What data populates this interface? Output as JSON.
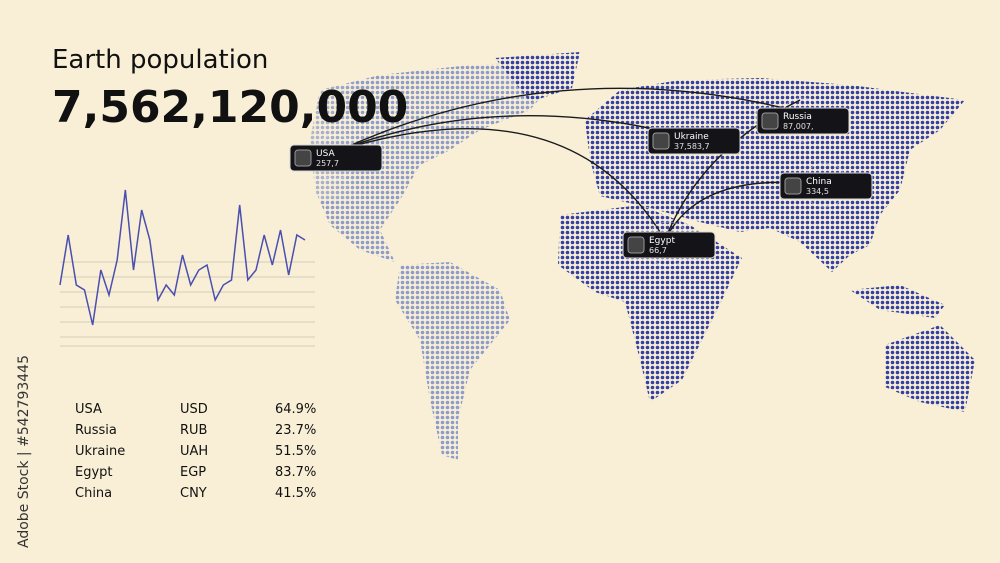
{
  "header": {
    "title": "Earth population",
    "population": "7,562,120,000"
  },
  "markers": [
    {
      "country": "USA",
      "value": "257,7"
    },
    {
      "country": "Ukraine",
      "value": "37,583,7"
    },
    {
      "country": "Russia",
      "value": "87,007,"
    },
    {
      "country": "China",
      "value": "334,5"
    },
    {
      "country": "Egypt",
      "value": "66,7"
    }
  ],
  "sparkline": {
    "type": "line",
    "color": "#4a4fb0",
    "values": [
      60,
      110,
      60,
      55,
      20,
      75,
      50,
      85,
      155,
      75,
      135,
      105,
      45,
      60,
      50,
      90,
      60,
      75,
      80,
      45,
      60,
      65,
      140,
      65,
      75,
      110,
      80,
      115,
      70,
      110,
      105
    ],
    "ylim": [
      0,
      160
    ]
  },
  "table": {
    "rows": [
      [
        "USA",
        "USD",
        "64.9%"
      ],
      [
        "Russia",
        "RUB",
        "23.7%"
      ],
      [
        "Ukraine",
        "UAH",
        "51.5%"
      ],
      [
        "Egypt",
        "EGP",
        "83.7%"
      ],
      [
        "China",
        "CNY",
        "41.5%"
      ]
    ]
  },
  "watermark": "Adobe Stock | #542793445"
}
